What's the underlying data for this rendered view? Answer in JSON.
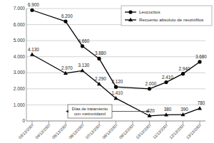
{
  "chart_data": {
    "type": "line",
    "categories": [
      "03/12/2007",
      "04/12/2007",
      "05/12/2007",
      "06/12/2007",
      "07/12/2007",
      "08/12/2007",
      "09/12/2007",
      "10/12/2007",
      "11/12/2007",
      "12/12/2007",
      "13/12/2007"
    ],
    "series": [
      {
        "name": "Leucocitos",
        "color": "#000000",
        "marker": "circle",
        "values": [
          6900,
          null,
          6200,
          4660,
          3880,
          2120,
          null,
          2000,
          2410,
          2940,
          3680
        ],
        "value_labels": [
          "6.900",
          null,
          "6.200",
          "4.660",
          "3.880",
          "2.120",
          null,
          "2.000",
          "2.410",
          "2.940",
          "3.680"
        ]
      },
      {
        "name": "Recuento absoluto de neutrófilos",
        "color": "#000000",
        "marker": "triangle",
        "values": [
          4130,
          null,
          2970,
          3130,
          2290,
          1410,
          null,
          320,
          380,
          390,
          780
        ],
        "value_labels": [
          "4.130",
          null,
          "2.970",
          "3.130",
          "2.290",
          "1.410",
          null,
          "320",
          "380",
          "390",
          "780"
        ]
      }
    ],
    "ylim": [
      0,
      7000
    ],
    "yticks": [
      0,
      {
        "value": 1000,
        "label": "1.000"
      },
      {
        "value": 2000,
        "label": "2.000"
      },
      {
        "value": 3000,
        "label": "3.000"
      },
      {
        "value": 4000,
        "label": "4.000"
      },
      {
        "value": 5000,
        "label": "5.000"
      },
      {
        "value": 6000,
        "label": "6.000"
      },
      {
        "value": 7000,
        "label": "7.000"
      }
    ],
    "grid": true,
    "legend": "upper right",
    "data_labels": true,
    "annotation": "Días de tratamiento con metronidazol"
  }
}
